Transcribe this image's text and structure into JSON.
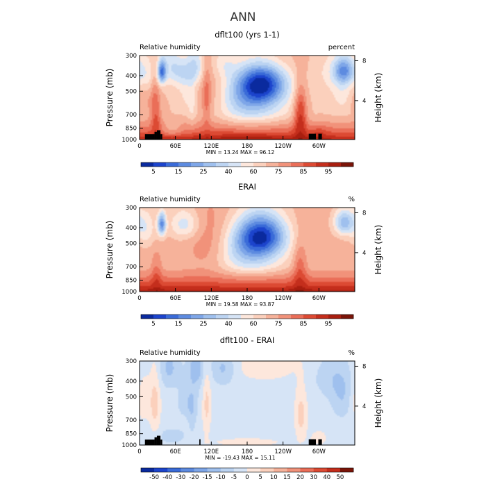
{
  "page_title": "ANN",
  "chart_data": [
    {
      "type": "heatmap",
      "title": "dflt100 (yrs 1-1)",
      "left_label": "Relative humidity",
      "right_label": "percent",
      "ylabel": "Pressure (mb)",
      "ylabel_right": "Height (km)",
      "x_ticks": [
        "0",
        "60E",
        "120E",
        "180",
        "120W",
        "60W"
      ],
      "x_tick_lon": [
        0,
        60,
        120,
        180,
        240,
        300
      ],
      "xlim": [
        0,
        360
      ],
      "y_ticks": [
        300,
        400,
        500,
        700,
        850,
        1000
      ],
      "ylim": [
        1000,
        300
      ],
      "y_scale": "log",
      "height_ticks_km": [
        8,
        4
      ],
      "min_text": "MIN =   13.24   MAX =   96.12",
      "colorbar_levels": [
        "5",
        "15",
        "25",
        "40",
        "60",
        "75",
        "85",
        "95"
      ],
      "colorbar_colors": [
        "#0a2a9e",
        "#1c44cc",
        "#3a6bd8",
        "#5d8be0",
        "#7ea6e8",
        "#9fc0ee",
        "#bcd4f2",
        "#d6e4f6",
        "#fde7dc",
        "#fbd0bc",
        "#f6b29a",
        "#f1927a",
        "#ea6e58",
        "#dc4a33",
        "#c42e1c",
        "#a81e0f",
        "#7a1408"
      ],
      "color_min": 0,
      "color_max": 100,
      "field": "rh_model",
      "has_land_mask": true
    },
    {
      "type": "heatmap",
      "title": "ERAI",
      "left_label": "Relative humidity",
      "right_label": "%",
      "ylabel": "Pressure (mb)",
      "ylabel_right": "Height (km)",
      "x_ticks": [
        "0",
        "60E",
        "120E",
        "180",
        "120W",
        "60W"
      ],
      "x_tick_lon": [
        0,
        60,
        120,
        180,
        240,
        300
      ],
      "xlim": [
        0,
        360
      ],
      "y_ticks": [
        300,
        400,
        500,
        700,
        850,
        1000
      ],
      "ylim": [
        1000,
        300
      ],
      "y_scale": "log",
      "height_ticks_km": [
        8,
        4
      ],
      "min_text": "MIN =   19.58   MAX =   93.87",
      "colorbar_levels": [
        "5",
        "15",
        "25",
        "40",
        "60",
        "75",
        "85",
        "95"
      ],
      "colorbar_colors": [
        "#0a2a9e",
        "#1c44cc",
        "#3a6bd8",
        "#5d8be0",
        "#7ea6e8",
        "#9fc0ee",
        "#bcd4f2",
        "#d6e4f6",
        "#fde7dc",
        "#fbd0bc",
        "#f6b29a",
        "#f1927a",
        "#ea6e58",
        "#dc4a33",
        "#c42e1c",
        "#a81e0f",
        "#7a1408"
      ],
      "color_min": 0,
      "color_max": 100,
      "field": "rh_obs",
      "has_land_mask": false
    },
    {
      "type": "heatmap",
      "title": "dflt100 - ERAI",
      "left_label": "Relative humidity",
      "right_label": "%",
      "ylabel": "Pressure (mb)",
      "ylabel_right": "Height (km)",
      "x_ticks": [
        "0",
        "60E",
        "120E",
        "180",
        "120W",
        "60W"
      ],
      "x_tick_lon": [
        0,
        60,
        120,
        180,
        240,
        300
      ],
      "xlim": [
        0,
        360
      ],
      "y_ticks": [
        300,
        400,
        500,
        700,
        850,
        1000
      ],
      "ylim": [
        1000,
        300
      ],
      "y_scale": "log",
      "height_ticks_km": [
        8,
        4
      ],
      "min_text": "MIN =  -19.43   MAX =   15.11",
      "colorbar_levels": [
        "-50",
        "-40",
        "-30",
        "-20",
        "-15",
        "-10",
        "-5",
        "0",
        "5",
        "10",
        "15",
        "20",
        "30",
        "40",
        "50"
      ],
      "colorbar_colors": [
        "#0a2a9e",
        "#1c44cc",
        "#3a6bd8",
        "#5d8be0",
        "#7ea6e8",
        "#9fc0ee",
        "#bcd4f2",
        "#d6e4f6",
        "#fde7dc",
        "#fbd0bc",
        "#f6b29a",
        "#f1927a",
        "#ea6e58",
        "#dc4a33",
        "#c42e1c",
        "#7a1408"
      ],
      "color_min": -50,
      "color_max": 50,
      "field": "rh_diff",
      "has_land_mask": true
    }
  ]
}
